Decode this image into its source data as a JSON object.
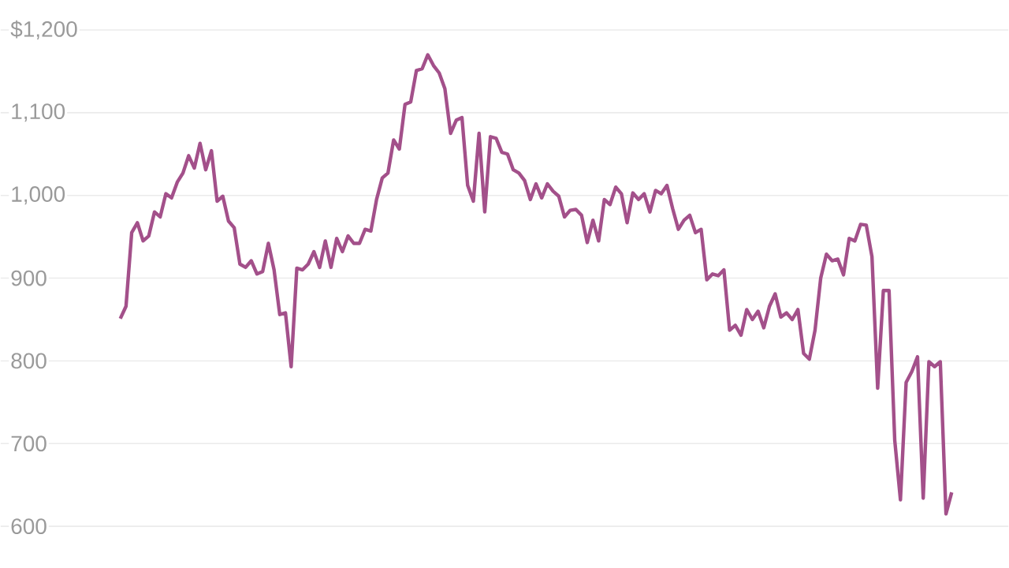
{
  "chart_data": {
    "type": "line",
    "color": "#a3508a",
    "grid": "y",
    "tick_labels": "y",
    "ylim": [
      600,
      1200
    ],
    "yticks": [
      {
        "value": 600,
        "label": "600"
      },
      {
        "value": 700,
        "label": "700"
      },
      {
        "value": 800,
        "label": "800"
      },
      {
        "value": 900,
        "label": "900"
      },
      {
        "value": 1000,
        "label": "1,000"
      },
      {
        "value": 1100,
        "label": "1,100"
      },
      {
        "value": 1200,
        "label": "$1,200"
      }
    ],
    "categories": [
      null,
      null,
      null,
      null,
      null,
      null,
      null,
      null,
      null,
      null,
      null,
      null,
      null,
      null,
      null,
      null,
      null,
      null,
      null,
      null,
      null,
      null,
      null,
      null,
      null,
      null,
      null,
      null,
      null,
      null,
      null,
      null,
      null,
      null,
      null,
      null,
      null,
      null,
      null,
      null,
      null,
      null,
      null,
      null,
      null,
      null,
      null,
      null,
      null,
      null,
      null,
      null,
      null,
      null,
      null,
      null,
      null,
      null,
      null,
      null,
      null,
      null,
      null,
      null,
      null,
      null,
      null,
      null,
      null,
      null,
      null,
      null,
      null,
      null,
      null,
      null,
      null,
      null,
      null,
      null,
      null,
      null,
      null,
      null,
      null,
      null,
      null,
      null,
      null,
      null,
      null,
      null,
      null,
      null,
      null,
      null,
      null,
      null,
      null,
      null,
      null,
      null,
      null,
      null,
      null,
      null,
      null,
      null,
      null,
      null,
      null,
      null,
      null,
      null,
      null,
      null,
      null,
      null,
      null,
      null,
      null,
      null,
      null,
      null,
      null,
      null,
      null,
      null,
      null,
      null,
      null,
      null,
      null,
      null,
      null,
      null,
      null,
      null,
      null,
      null,
      null,
      null,
      null,
      null,
      null,
      null,
      null
    ],
    "values": [
      851,
      866,
      955,
      967,
      945,
      951,
      980,
      974,
      1002,
      997,
      1016,
      1027,
      1048,
      1033,
      1063,
      1031,
      1054,
      993,
      999,
      969,
      961,
      917,
      913,
      921,
      905,
      908,
      942,
      910,
      856,
      858,
      793,
      912,
      910,
      917,
      932,
      913,
      945,
      913,
      948,
      932,
      951,
      942,
      942,
      959,
      957,
      995,
      1021,
      1027,
      1067,
      1056,
      1110,
      1113,
      1151,
      1153,
      1170,
      1157,
      1148,
      1129,
      1075,
      1091,
      1094,
      1012,
      993,
      1075,
      980,
      1071,
      1069,
      1052,
      1050,
      1031,
      1027,
      1018,
      995,
      1014,
      997,
      1014,
      1005,
      999,
      974,
      982,
      983,
      976,
      943,
      970,
      945,
      995,
      989,
      1010,
      1002,
      967,
      1003,
      995,
      1002,
      980,
      1006,
      1002,
      1012,
      984,
      959,
      970,
      976,
      955,
      959,
      898,
      905,
      903,
      910,
      837,
      843,
      831,
      862,
      850,
      860,
      840,
      866,
      881,
      853,
      858,
      850,
      862,
      809,
      802,
      837,
      900,
      929,
      921,
      923,
      904,
      948,
      945,
      965,
      964,
      926,
      767,
      885,
      885,
      704,
      632,
      774,
      787,
      805,
      634,
      799,
      793,
      799,
      615,
      641
    ]
  }
}
